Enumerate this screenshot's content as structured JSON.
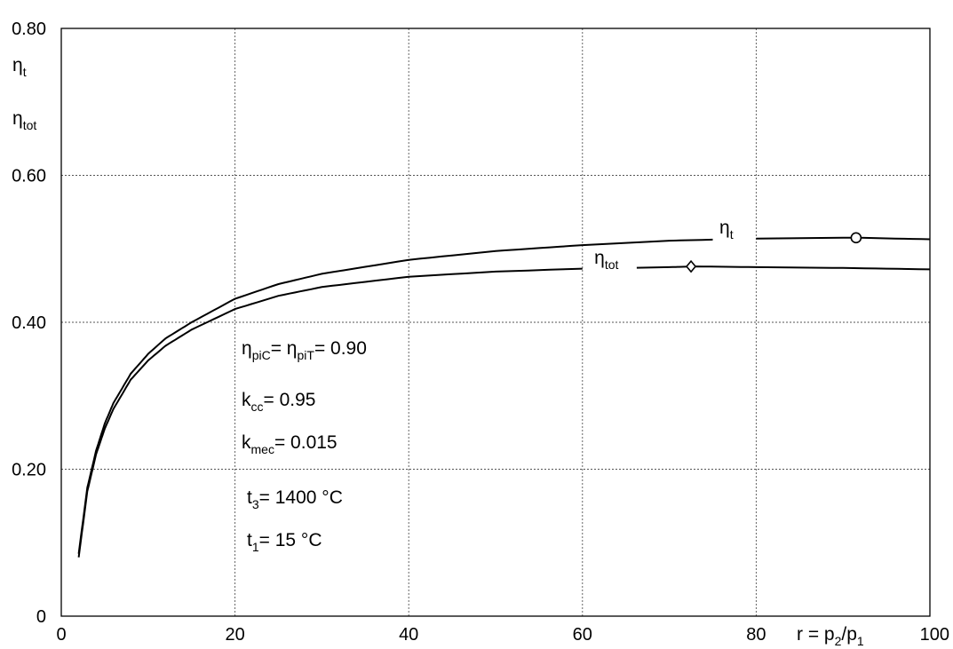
{
  "chart_data": {
    "type": "line",
    "x_axis": {
      "range": [
        0,
        100
      ],
      "ticks": [
        0,
        20,
        40,
        60,
        80,
        100
      ],
      "tick_labels": [
        "0",
        "20",
        "40",
        "60",
        "80",
        "100"
      ],
      "label": "r = p2/p1",
      "label_parts": {
        "main": "r = p",
        "sub1": "2",
        "mid": "/p",
        "sub2": "1"
      }
    },
    "y_axis": {
      "range": [
        0,
        0.8
      ],
      "ticks": [
        0,
        0.2,
        0.4,
        0.6,
        0.8
      ],
      "tick_labels": [
        "0",
        "0.20",
        "0.40",
        "0.60",
        "0.80"
      ],
      "labels": [
        {
          "main": "η",
          "sub": "t"
        },
        {
          "main": "η",
          "sub": "tot"
        }
      ]
    },
    "grid": true,
    "series": [
      {
        "name": "η_t",
        "label_parts": {
          "main": "η",
          "sub": "t"
        },
        "x": [
          2,
          3,
          4,
          5,
          6,
          8,
          10,
          12,
          15,
          20,
          25,
          30,
          40,
          50,
          60,
          70,
          80,
          90,
          92,
          100
        ],
        "y": [
          0.085,
          0.175,
          0.225,
          0.262,
          0.29,
          0.33,
          0.357,
          0.378,
          0.4,
          0.432,
          0.452,
          0.466,
          0.485,
          0.497,
          0.505,
          0.511,
          0.514,
          0.515,
          0.515,
          0.513
        ],
        "marker": {
          "x": 91.5,
          "y": 0.515,
          "shape": "circle"
        }
      },
      {
        "name": "η_tot",
        "label_parts": {
          "main": "η",
          "sub": "tot"
        },
        "x": [
          2,
          3,
          4,
          5,
          6,
          8,
          10,
          12,
          15,
          20,
          25,
          30,
          40,
          50,
          60,
          70,
          73,
          80,
          90,
          100
        ],
        "y": [
          0.08,
          0.17,
          0.22,
          0.255,
          0.282,
          0.322,
          0.348,
          0.368,
          0.39,
          0.418,
          0.436,
          0.448,
          0.462,
          0.469,
          0.473,
          0.475,
          0.476,
          0.475,
          0.474,
          0.472
        ],
        "marker": {
          "x": 72.5,
          "y": 0.476,
          "shape": "diamond"
        }
      }
    ],
    "annotations": [
      {
        "parts": [
          {
            "t": "η"
          },
          {
            "t": "piC",
            "sub": true
          },
          {
            "t": "= η"
          },
          {
            "t": "piT",
            "sub": true
          },
          {
            "t": "= 0.90"
          }
        ]
      },
      {
        "parts": [
          {
            "t": "k"
          },
          {
            "t": "cc",
            "sub": true
          },
          {
            "t": "= 0.95"
          }
        ]
      },
      {
        "parts": [
          {
            "t": "k"
          },
          {
            "t": "mec",
            "sub": true
          },
          {
            "t": "= 0.015"
          }
        ]
      },
      {
        "parts": [
          {
            "t": "t"
          },
          {
            "t": "3",
            "sub": true
          },
          {
            "t": "= 1400 °C"
          }
        ]
      },
      {
        "parts": [
          {
            "t": "t"
          },
          {
            "t": "1",
            "sub": true
          },
          {
            "t": "= 15 °C"
          }
        ]
      }
    ],
    "colors": {
      "line": "#000000",
      "grid": "#555555",
      "background": "#ffffff"
    }
  }
}
